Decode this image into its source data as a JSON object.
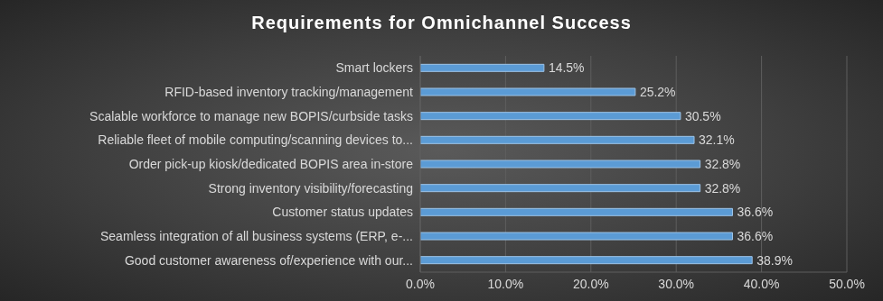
{
  "chart_data": {
    "type": "bar",
    "title": "Requirements for Omnichannel Success",
    "orientation": "horizontal",
    "categories": [
      "Smart lockers",
      "RFID-based inventory tracking/management",
      "Scalable workforce to manage new BOPIS/curbside tasks",
      "Reliable fleet of mobile computing/scanning devices to...",
      "Order pick-up kiosk/dedicated BOPIS area in-store",
      "Strong inventory visibility/forecasting",
      "Customer status updates",
      "Seamless integration of all business systems (ERP, e-...",
      "Good customer awareness of/experience with our..."
    ],
    "values": [
      14.5,
      25.2,
      30.5,
      32.1,
      32.8,
      32.8,
      36.6,
      36.6,
      38.9
    ],
    "value_labels": [
      "14.5%",
      "25.2%",
      "30.5%",
      "32.1%",
      "32.8%",
      "32.8%",
      "36.6%",
      "36.6%",
      "38.9%"
    ],
    "data_labels": true,
    "color": "#5b9bd5",
    "xlim": [
      0,
      50
    ],
    "xticks": [
      {
        "value": 0,
        "label": "0.0%"
      },
      {
        "value": 10,
        "label": "10.0%"
      },
      {
        "value": 20,
        "label": "20.0%"
      },
      {
        "value": 30,
        "label": "30.0%"
      },
      {
        "value": 40,
        "label": "40.0%"
      },
      {
        "value": 50,
        "label": "50.0%"
      }
    ],
    "grid": true
  }
}
